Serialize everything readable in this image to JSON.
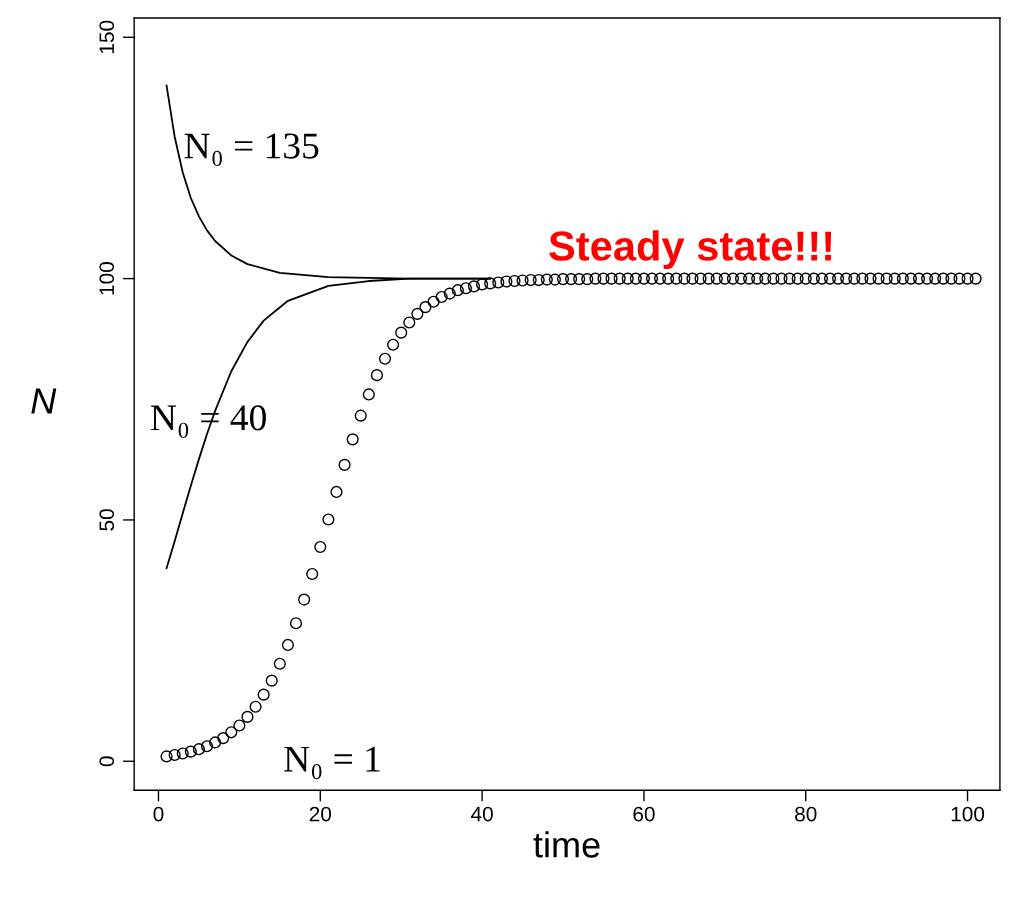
{
  "chart_data": {
    "type": "line",
    "xlabel": "time",
    "ylabel": "N",
    "xlim": [
      -3,
      104
    ],
    "ylim": [
      -6,
      154
    ],
    "xticks": [
      0,
      20,
      40,
      60,
      80,
      100
    ],
    "yticks": [
      0,
      50,
      100,
      150
    ],
    "grid": false,
    "legend": false,
    "series": [
      {
        "color": "#000000",
        "marker": "none",
        "x": [
          1,
          2,
          3,
          4,
          5,
          6,
          7,
          9,
          11,
          15,
          21,
          31,
          41
        ],
        "values": [
          140,
          129.4,
          122,
          116.7,
          112.9,
          110,
          107.8,
          104.8,
          103,
          101.2,
          100.3,
          100,
          100
        ]
      },
      {
        "color": "#000000",
        "marker": "none",
        "x": [
          1,
          2,
          3,
          4,
          5,
          6,
          7,
          9,
          11,
          13,
          16,
          21,
          26,
          31,
          41
        ],
        "values": [
          40,
          45.6,
          51.4,
          57.1,
          62.6,
          67.8,
          72.6,
          80.8,
          86.9,
          91.3,
          95.4,
          98.5,
          99.5,
          100,
          100
        ]
      },
      {
        "type": "scatter",
        "color": "#000000",
        "marker": "circle",
        "x": [
          1,
          2,
          3,
          4,
          5,
          6,
          7,
          8,
          9,
          10,
          11,
          12,
          13,
          14,
          15,
          16,
          17,
          18,
          19,
          20,
          21,
          22,
          23,
          24,
          25,
          26,
          27,
          28,
          29,
          30,
          31,
          32,
          33,
          34,
          35,
          36,
          37,
          38,
          39,
          40,
          41,
          42,
          43,
          44,
          45,
          46,
          47,
          48,
          49,
          50,
          51,
          52,
          53,
          54,
          55,
          56,
          57,
          58,
          59,
          60,
          61,
          62,
          63,
          64,
          65,
          66,
          67,
          68,
          69,
          70,
          71,
          72,
          73,
          74,
          75,
          76,
          77,
          78,
          79,
          80,
          81,
          82,
          83,
          84,
          85,
          86,
          87,
          88,
          89,
          90,
          91,
          92,
          93,
          94,
          95,
          96,
          97,
          98,
          99,
          100,
          101
        ],
        "values": [
          1,
          1.3,
          1.6,
          2,
          2.5,
          3.1,
          3.9,
          4.8,
          6,
          7.4,
          9.2,
          11.3,
          13.8,
          16.7,
          20.2,
          24.1,
          28.6,
          33.5,
          38.8,
          44.4,
          50.1,
          55.8,
          61.4,
          66.7,
          71.6,
          76,
          80,
          83.4,
          86.3,
          88.8,
          90.9,
          92.7,
          94.1,
          95.2,
          96.2,
          96.9,
          97.6,
          98,
          98.4,
          98.8,
          99,
          99.2,
          99.4,
          99.5,
          99.6,
          99.7,
          99.7,
          99.8,
          99.8,
          99.9,
          99.9,
          99.9,
          99.9,
          100,
          100,
          100,
          100,
          100,
          100,
          100,
          100,
          100,
          100,
          100,
          100,
          100,
          100,
          100,
          100,
          100,
          100,
          100,
          100,
          100,
          100,
          100,
          100,
          100,
          100,
          100,
          100,
          100,
          100,
          100,
          100,
          100,
          100,
          100,
          100,
          100,
          100,
          100,
          100,
          100,
          100,
          100,
          100,
          100,
          100,
          100,
          100
        ]
      }
    ],
    "annotations": [
      "N₀ = 135",
      "N₀ = 40",
      "N₀ = 1",
      "Steady state!!!"
    ]
  }
}
